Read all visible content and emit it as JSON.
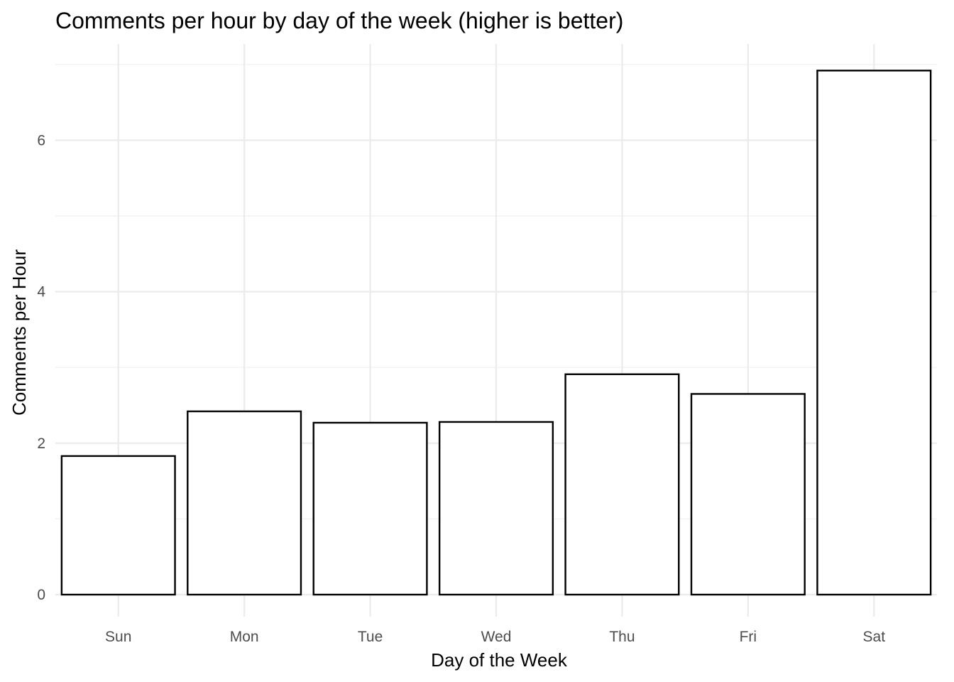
{
  "chart_data": {
    "type": "bar",
    "title": "Comments per hour by day of the week (higher is better)",
    "xlabel": "Day of the Week",
    "ylabel": "Comments per Hour",
    "categories": [
      "Sun",
      "Mon",
      "Tue",
      "Wed",
      "Thu",
      "Fri",
      "Sat"
    ],
    "values": [
      1.83,
      2.42,
      2.27,
      2.28,
      2.91,
      2.65,
      6.92
    ],
    "ylim": [
      0,
      7.0
    ],
    "yticks": [
      0,
      2,
      4,
      6
    ],
    "ytick_labels": [
      "0",
      "2",
      "4",
      "6"
    ],
    "grid": true,
    "legend": "none",
    "bar_fill": "#ffffff",
    "bar_stroke": "#000000",
    "grid_color": "#ebebeb"
  }
}
